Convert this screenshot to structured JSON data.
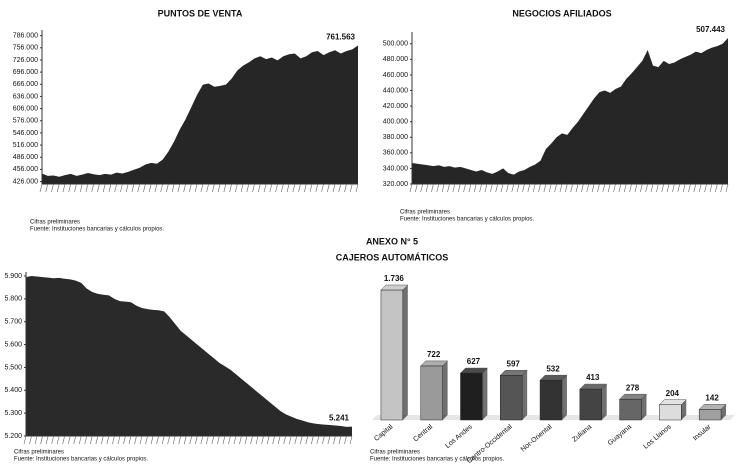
{
  "header": {
    "anexo": "ANEXO N° 5",
    "title": "CAJEROS AUTOMÁTICOS"
  },
  "chart_data": [
    {
      "type": "area",
      "title": "PUNTOS DE VENTA",
      "color": "#262626",
      "values": [
        446000,
        440000,
        441000,
        438000,
        442000,
        445000,
        440000,
        443000,
        447000,
        444000,
        442000,
        445000,
        443000,
        448000,
        446000,
        450000,
        455000,
        460000,
        468000,
        472000,
        470000,
        480000,
        500000,
        525000,
        555000,
        580000,
        610000,
        640000,
        665000,
        668000,
        660000,
        662000,
        665000,
        680000,
        700000,
        712000,
        720000,
        730000,
        735000,
        728000,
        732000,
        725000,
        735000,
        740000,
        742000,
        730000,
        735000,
        745000,
        748000,
        738000,
        745000,
        750000,
        742000,
        748000,
        752000,
        761563
      ],
      "annotation": "761.563",
      "ylim": [
        420000,
        790000
      ],
      "yticks": [
        {
          "value": 426000,
          "label": "426.000"
        },
        {
          "value": 456000,
          "label": "456.000"
        },
        {
          "value": 486000,
          "label": "486.000"
        },
        {
          "value": 516000,
          "label": "516.000"
        },
        {
          "value": 546000,
          "label": "546.000"
        },
        {
          "value": 576000,
          "label": "576.000"
        },
        {
          "value": 606000,
          "label": "606.000"
        },
        {
          "value": 636000,
          "label": "636.000"
        },
        {
          "value": 666000,
          "label": "666.000"
        },
        {
          "value": 696000,
          "label": "696.000"
        },
        {
          "value": 726000,
          "label": "726.000"
        },
        {
          "value": 756000,
          "label": "756.000"
        },
        {
          "value": 786000,
          "label": "786.000"
        }
      ],
      "notes": [
        "Cifras preliminares",
        "Fuente: Instituciones bancarias y cálculos propios."
      ]
    },
    {
      "type": "area",
      "title": "NEGOCIOS AFILIADOS",
      "color": "#262626",
      "values": [
        347000,
        346000,
        345000,
        344000,
        343000,
        344000,
        342000,
        343000,
        341000,
        342000,
        340000,
        338000,
        336000,
        338000,
        335000,
        333000,
        336000,
        340000,
        334000,
        332000,
        336000,
        338000,
        342000,
        345000,
        350000,
        365000,
        372000,
        380000,
        385000,
        383000,
        392000,
        400000,
        410000,
        420000,
        430000,
        438000,
        440000,
        437000,
        442000,
        445000,
        455000,
        462000,
        470000,
        478000,
        492000,
        472000,
        470000,
        478000,
        474000,
        476000,
        480000,
        483000,
        486000,
        490000,
        488000,
        492000,
        495000,
        497000,
        500000,
        507443
      ],
      "annotation": "507.443",
      "ylim": [
        320000,
        510000
      ],
      "yticks": [
        {
          "value": 320000,
          "label": "320.000"
        },
        {
          "value": 340000,
          "label": "340.000"
        },
        {
          "value": 360000,
          "label": "360.000"
        },
        {
          "value": 380000,
          "label": "380.000"
        },
        {
          "value": 400000,
          "label": "400.000"
        },
        {
          "value": 420000,
          "label": "420.000"
        },
        {
          "value": 440000,
          "label": "440.000"
        },
        {
          "value": 460000,
          "label": "460.000"
        },
        {
          "value": 480000,
          "label": "480.000"
        },
        {
          "value": 500000,
          "label": "500.000"
        }
      ],
      "notes": [
        "Cifras preliminares",
        "Fuente: Instituciones bancarias y cálculos propios."
      ]
    },
    {
      "type": "area",
      "color": "#2a2a2a",
      "values": [
        5895,
        5900,
        5898,
        5895,
        5893,
        5890,
        5892,
        5888,
        5885,
        5880,
        5870,
        5845,
        5830,
        5822,
        5818,
        5815,
        5800,
        5790,
        5788,
        5785,
        5770,
        5760,
        5755,
        5752,
        5750,
        5745,
        5720,
        5690,
        5660,
        5640,
        5620,
        5600,
        5580,
        5560,
        5540,
        5520,
        5505,
        5490,
        5470,
        5450,
        5430,
        5410,
        5390,
        5370,
        5350,
        5330,
        5310,
        5295,
        5285,
        5275,
        5268,
        5260,
        5255,
        5252,
        5250,
        5248,
        5246,
        5244,
        5240,
        5241
      ],
      "annotation": "5.241",
      "ylim": [
        5200,
        5900
      ],
      "yticks": [
        {
          "value": 5200,
          "label": "5.200"
        },
        {
          "value": 5300,
          "label": "5.300"
        },
        {
          "value": 5400,
          "label": "5.400"
        },
        {
          "value": 5500,
          "label": "5.500"
        },
        {
          "value": 5600,
          "label": "5.600"
        },
        {
          "value": 5700,
          "label": "5.700"
        },
        {
          "value": 5800,
          "label": "5.800"
        },
        {
          "value": 5900,
          "label": "5.900"
        }
      ],
      "notes": [
        "Cifras preliminares",
        "Fuente: Instituciones bancarias y cálculos propios."
      ]
    },
    {
      "type": "bar",
      "categories": [
        "Capital",
        "Central",
        "Los Andes",
        "Centro-Occidental",
        "Nor-Oriental",
        "Zuliana",
        "Guayana",
        "Los Llanos",
        "Insular"
      ],
      "values": [
        1736,
        722,
        627,
        597,
        532,
        413,
        278,
        204,
        142
      ],
      "value_labels": [
        "1.736",
        "722",
        "627",
        "597",
        "532",
        "413",
        "278",
        "204",
        "142"
      ],
      "colors": [
        "#c4c4c4",
        "#9a9a9a",
        "#1f1f1f",
        "#555555",
        "#333333",
        "#444444",
        "#666666",
        "#dddddd",
        "#a0a0a0"
      ],
      "notes": [
        "Cifras preliminares",
        "Fuente: Instituciones bancarias y cálculos propios."
      ]
    }
  ]
}
